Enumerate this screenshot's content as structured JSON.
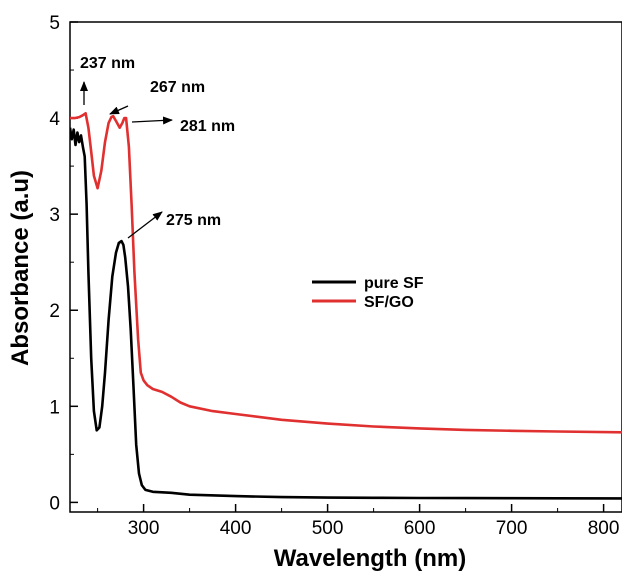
{
  "chart_data": {
    "type": "line",
    "xlabel": "Wavelength (nm)",
    "ylabel": "Absorbance (a.u)",
    "xlim": [
      220,
      820
    ],
    "ylim": [
      -0.1,
      5
    ],
    "xticks": [
      300,
      400,
      500,
      600,
      700,
      800
    ],
    "xtick_labels": [
      "300",
      "400",
      "500",
      "600",
      "700",
      "800"
    ],
    "yticks": [
      0,
      1,
      2,
      3,
      4,
      5
    ],
    "ytick_labels": [
      "0",
      "1",
      "2",
      "3",
      "4",
      "5"
    ],
    "grid": false,
    "legend_position": "center-right",
    "series": [
      {
        "name": "pure SF",
        "color": "#000000",
        "x": [
          220,
          222,
          224,
          226,
          228,
          230,
          232,
          234,
          236,
          238,
          240,
          243,
          246,
          249,
          252,
          255,
          258,
          262,
          266,
          270,
          273,
          276,
          278,
          280,
          283,
          286,
          289,
          292,
          295,
          298,
          302,
          310,
          330,
          350,
          400,
          450,
          500,
          550,
          600,
          650,
          700,
          750,
          820
        ],
        "y": [
          3.9,
          3.78,
          3.88,
          3.72,
          3.85,
          3.75,
          3.82,
          3.7,
          3.6,
          3.1,
          2.4,
          1.5,
          0.95,
          0.75,
          0.78,
          1.0,
          1.35,
          1.9,
          2.35,
          2.6,
          2.7,
          2.72,
          2.68,
          2.55,
          2.25,
          1.8,
          1.2,
          0.6,
          0.3,
          0.18,
          0.13,
          0.11,
          0.1,
          0.08,
          0.065,
          0.055,
          0.05,
          0.048,
          0.046,
          0.045,
          0.044,
          0.043,
          0.042
        ]
      },
      {
        "name": "SF/GO",
        "color": "#e03030",
        "x": [
          220,
          225,
          230,
          234,
          237,
          240,
          243,
          246,
          250,
          254,
          258,
          262,
          265,
          267,
          270,
          274,
          277,
          279,
          281,
          284,
          287,
          290,
          294,
          297,
          300,
          304,
          310,
          320,
          330,
          340,
          350,
          375,
          400,
          450,
          500,
          550,
          600,
          650,
          700,
          750,
          820
        ],
        "y": [
          4.0,
          4.0,
          4.01,
          4.03,
          4.05,
          3.9,
          3.65,
          3.4,
          3.27,
          3.45,
          3.75,
          3.95,
          4.01,
          4.02,
          3.97,
          3.9,
          3.95,
          4.0,
          4.0,
          3.7,
          3.1,
          2.4,
          1.7,
          1.35,
          1.27,
          1.22,
          1.18,
          1.15,
          1.1,
          1.04,
          1.0,
          0.95,
          0.92,
          0.86,
          0.82,
          0.79,
          0.77,
          0.755,
          0.745,
          0.738,
          0.73
        ]
      }
    ],
    "annotations": [
      {
        "text": "237 nm",
        "x": 237,
        "y": 4.05
      },
      {
        "text": "267 nm",
        "x": 267,
        "y": 4.02
      },
      {
        "text": "281 nm",
        "x": 281,
        "y": 4.0
      },
      {
        "text": "275 nm",
        "x": 276,
        "y": 2.72
      }
    ]
  }
}
